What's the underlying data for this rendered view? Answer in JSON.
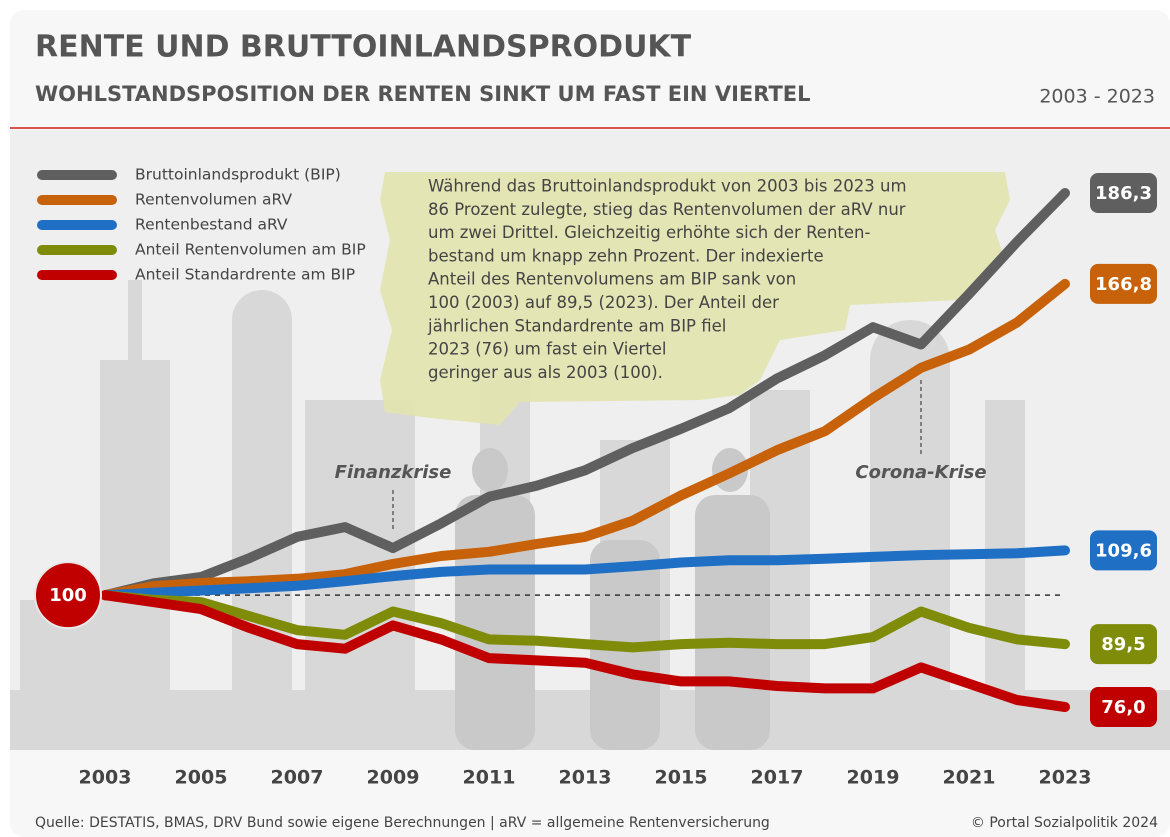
{
  "chart_data": {
    "type": "line",
    "title": "RENTE UND BRUTTOINLANDSPRODUKT",
    "subtitle": "WOHLSTANDSPOSITION DER RENTEN SINKT UM FAST EIN VIERTEL",
    "period": "2003 - 2023",
    "x": [
      2003,
      2004,
      2005,
      2006,
      2007,
      2008,
      2009,
      2010,
      2011,
      2012,
      2013,
      2014,
      2015,
      2016,
      2017,
      2018,
      2019,
      2020,
      2021,
      2022,
      2023
    ],
    "xlim": [
      2003,
      2023
    ],
    "xticks": [
      2003,
      2005,
      2007,
      2009,
      2011,
      2013,
      2015,
      2017,
      2019,
      2021,
      2023
    ],
    "baseline": 100,
    "legend": "top-left",
    "series": [
      {
        "name": "Bruttoinlandsprodukt (BIP)",
        "color": "#5f5f5f",
        "values": [
          100,
          102.5,
          103.9,
          107.9,
          112.5,
          114.6,
          110.1,
          115.4,
          121.1,
          123.5,
          126.8,
          131.6,
          135.7,
          140.1,
          146.5,
          151.5,
          157.5,
          153.8,
          164.6,
          175.8,
          186.3
        ],
        "end_label": "186,3"
      },
      {
        "name": "Rentenvolumen aRV",
        "color": "#c8620a",
        "values": [
          100,
          101.9,
          102.6,
          103,
          103.5,
          104.5,
          106.7,
          108.4,
          109.3,
          111,
          112.5,
          116,
          121.4,
          126.1,
          131.1,
          135.2,
          142.3,
          148.8,
          152.7,
          158.5,
          166.8
        ],
        "end_label": "166,8"
      },
      {
        "name": "Rentenbestand aRV",
        "color": "#1f6fc5",
        "values": [
          100,
          100.5,
          101,
          101.5,
          102,
          103,
          104.1,
          105,
          105.5,
          105.5,
          105.5,
          106.2,
          107,
          107.5,
          107.5,
          107.8,
          108.2,
          108.6,
          108.8,
          109,
          109.6
        ],
        "end_label": "109,6"
      },
      {
        "name": "Anteil Rentenvolumen am BIP",
        "color": "#7f8c0a",
        "values": [
          100,
          99,
          98.5,
          95.5,
          92.5,
          91.5,
          96.5,
          94,
          90.5,
          90.2,
          89.5,
          88.8,
          89.5,
          89.8,
          89.5,
          89.5,
          91,
          96.5,
          93,
          90.5,
          89.5
        ],
        "end_label": "89,5"
      },
      {
        "name": "Anteil Standardrente am BIP",
        "color": "#c00000",
        "values": [
          100,
          98.5,
          97,
          93,
          89.5,
          88.5,
          93.5,
          90.5,
          86.5,
          86,
          85.5,
          83,
          81.5,
          81.5,
          80.5,
          80,
          80,
          84.5,
          81,
          77.5,
          76
        ],
        "end_label": "76,0"
      }
    ],
    "annotations": [
      {
        "text": "Finanzkrise",
        "x": 2009
      },
      {
        "text": "Corona-Krise",
        "x": 2020
      }
    ],
    "note_lines": [
      "Während das Bruttoinlandsprodukt von 2003 bis 2023 um",
      "86 Prozent zulegte, stieg das Rentenvolumen der aRV nur",
      "um zwei Drittel. Gleichzeitig erhöhte sich der Renten-",
      "bestand um knapp zehn Prozent. Der indexierte",
      "Anteil des Rentenvolumens am BIP sank von",
      "100 (2003) auf 89,5 (2023). Der Anteil der",
      "jährlichen Standardrente am BIP fiel",
      "2023 (76) um fast ein Viertel",
      "geringer aus als 2003 (100)."
    ],
    "source": "Quelle: DESTATIS, BMAS, DRV Bund sowie eigene Berechnungen | aRV = allgemeine Rentenversicherung",
    "copyright": "© Portal Sozialpolitik 2024"
  }
}
